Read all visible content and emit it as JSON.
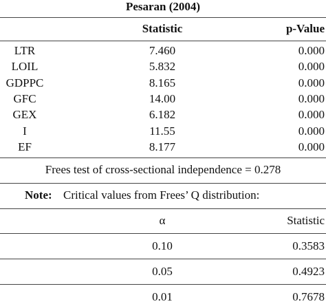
{
  "title": "Pesaran (2004)",
  "table": {
    "header": [
      "Statistic",
      "p-Value"
    ],
    "rows": [
      [
        "LTR",
        "7.460",
        "0.000"
      ],
      [
        "LOIL",
        "5.832",
        "0.000"
      ],
      [
        "GDPPC",
        "8.165",
        "0.000"
      ],
      [
        "GFC",
        "14.00",
        "0.000"
      ],
      [
        "GEX",
        "6.182",
        "0.000"
      ],
      [
        "I",
        "11.55",
        "0.000"
      ],
      [
        "EF",
        "8.177",
        "0.000"
      ]
    ]
  },
  "frees_test": "Frees test of cross-sectional independence = 0.278",
  "note": {
    "label": "Note:",
    "text": "Critical values from Frees’ Q distribution:"
  },
  "critical_table": {
    "header": [
      "α",
      "Statistic"
    ],
    "rows": [
      [
        "0.10",
        "0.3583"
      ],
      [
        "0.05",
        "0.4923"
      ],
      [
        "0.01",
        "0.7678"
      ]
    ]
  }
}
